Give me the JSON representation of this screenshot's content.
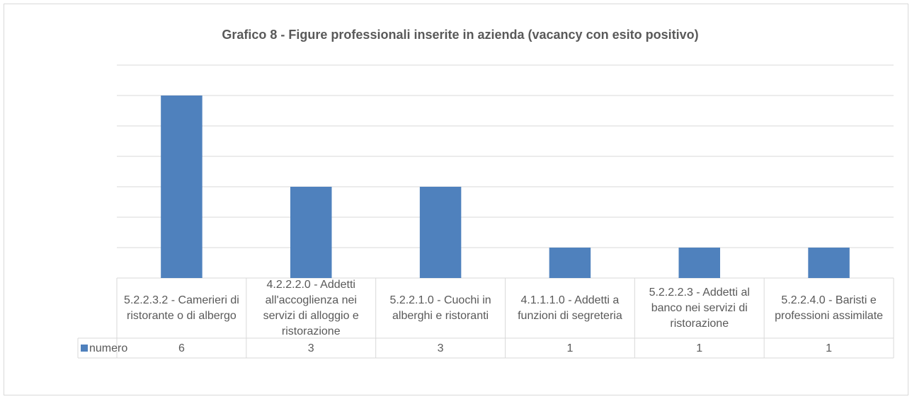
{
  "chart_data": {
    "type": "bar",
    "title": "Grafico 8 - Figure professionali inserite in azienda (vacancy con esito positivo)",
    "categories": [
      "5.2.2.3.2 - Camerieri di ristorante o di albergo",
      "4.2.2.2.0 - Addetti all'accoglienza nei servizi di alloggio e ristorazione",
      "5.2.2.1.0 - Cuochi in alberghi e ristoranti",
      "4.1.1.1.0 - Addetti a funzioni di segreteria",
      "5.2.2.2.3 - Addetti al banco nei servizi di ristorazione",
      "5.2.2.4.0 - Baristi e professioni assimilate"
    ],
    "series": [
      {
        "name": "numero",
        "color": "#4f81bd",
        "values": [
          6,
          3,
          3,
          1,
          1,
          1
        ]
      }
    ],
    "ylim": [
      0,
      7
    ],
    "yticks": [
      0,
      1,
      2,
      3,
      4,
      5,
      6,
      7
    ],
    "grid": true
  }
}
